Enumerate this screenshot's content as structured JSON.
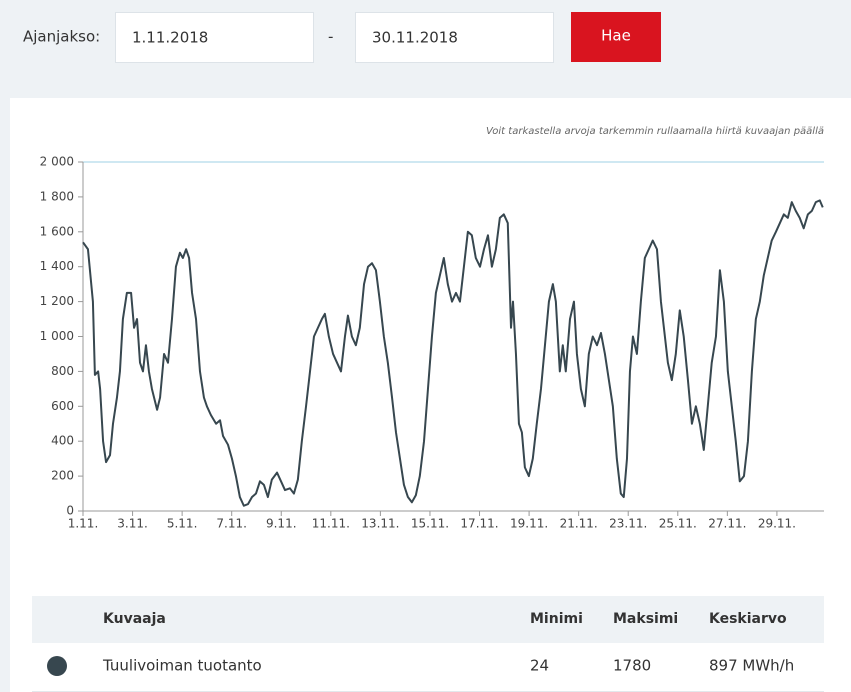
{
  "form": {
    "label": "Ajanjakso:",
    "start": "1.11.2018",
    "separator": "-",
    "end": "30.11.2018",
    "button": "Hae"
  },
  "hint": "Voit tarkastella arvoja tarkemmin rullaamalla hiirtä kuvaajan päällä",
  "chart_data": {
    "type": "line",
    "x": [
      1.0,
      1.2,
      1.4,
      1.48,
      1.61,
      1.69,
      1.81,
      1.93,
      2.09,
      2.21,
      2.37,
      2.49,
      2.61,
      2.77,
      2.94,
      3.06,
      3.18,
      3.3,
      3.42,
      3.54,
      3.66,
      3.78,
      3.99,
      4.11,
      4.27,
      4.43,
      4.59,
      4.75,
      4.91,
      5.03,
      5.16,
      5.28,
      5.4,
      5.56,
      5.72,
      5.88,
      6.0,
      6.16,
      6.37,
      6.53,
      6.65,
      6.85,
      7.01,
      7.17,
      7.33,
      7.49,
      7.66,
      7.82,
      7.98,
      8.14,
      8.3,
      8.46,
      8.62,
      8.83,
      8.99,
      9.15,
      9.35,
      9.51,
      9.67,
      9.83,
      10.0,
      10.16,
      10.32,
      10.48,
      10.64,
      10.76,
      10.92,
      11.09,
      11.25,
      11.41,
      11.57,
      11.69,
      11.85,
      12.01,
      12.17,
      12.34,
      12.5,
      12.66,
      12.82,
      12.98,
      13.14,
      13.3,
      13.47,
      13.63,
      13.79,
      13.95,
      14.11,
      14.27,
      14.43,
      14.59,
      14.76,
      14.92,
      15.08,
      15.24,
      15.4,
      15.56,
      15.72,
      15.89,
      16.05,
      16.21,
      16.37,
      16.53,
      16.69,
      16.85,
      17.02,
      17.18,
      17.34,
      17.5,
      17.66,
      17.82,
      17.98,
      18.14,
      18.27,
      18.35,
      18.47,
      18.59,
      18.71,
      18.83,
      18.99,
      19.15,
      19.31,
      19.48,
      19.64,
      19.8,
      19.96,
      20.08,
      20.24,
      20.36,
      20.48,
      20.65,
      20.81,
      20.93,
      21.09,
      21.25,
      21.41,
      21.57,
      21.74,
      21.9,
      22.06,
      22.22,
      22.38,
      22.54,
      22.7,
      22.82,
      22.95,
      23.07,
      23.19,
      23.35,
      23.51,
      23.67,
      23.83,
      23.99,
      24.16,
      24.32,
      24.44,
      24.6,
      24.76,
      24.92,
      25.08,
      25.24,
      25.41,
      25.57,
      25.73,
      25.89,
      26.05,
      26.21,
      26.37,
      26.54,
      26.7,
      26.86,
      27.02,
      27.18,
      27.34,
      27.5,
      27.67,
      27.83,
      27.99,
      28.15,
      28.31,
      28.47,
      28.63,
      28.79,
      28.96,
      29.12,
      29.28,
      29.44,
      29.6,
      29.76,
      29.92,
      30.08,
      30.25,
      30.41,
      30.57,
      30.73,
      30.85
    ],
    "series": [
      {
        "name": "Tuulivoiman tuotanto",
        "color": "#37474f",
        "values": [
          1540,
          1500,
          1200,
          780,
          800,
          700,
          400,
          280,
          320,
          500,
          650,
          800,
          1100,
          1250,
          1250,
          1050,
          1100,
          850,
          800,
          950,
          800,
          700,
          580,
          650,
          900,
          850,
          1100,
          1400,
          1480,
          1450,
          1500,
          1450,
          1250,
          1100,
          800,
          650,
          600,
          550,
          500,
          520,
          430,
          380,
          300,
          200,
          80,
          30,
          40,
          80,
          100,
          170,
          150,
          80,
          180,
          220,
          170,
          120,
          130,
          100,
          180,
          400,
          600,
          800,
          1000,
          1050,
          1100,
          1130,
          1000,
          900,
          850,
          800,
          1000,
          1120,
          1000,
          950,
          1050,
          1300,
          1400,
          1420,
          1380,
          1200,
          1000,
          850,
          650,
          450,
          300,
          150,
          80,
          50,
          90,
          200,
          400,
          700,
          1000,
          1250,
          1350,
          1450,
          1300,
          1200,
          1250,
          1200,
          1400,
          1600,
          1580,
          1450,
          1400,
          1500,
          1580,
          1400,
          1500,
          1680,
          1700,
          1650,
          1050,
          1200,
          900,
          500,
          450,
          250,
          200,
          300,
          500,
          700,
          950,
          1200,
          1300,
          1200,
          800,
          950,
          800,
          1100,
          1200,
          900,
          700,
          600,
          900,
          1000,
          950,
          1020,
          900,
          750,
          600,
          300,
          100,
          80,
          300,
          800,
          1000,
          900,
          1200,
          1450,
          1500,
          1550,
          1500,
          1200,
          1050,
          850,
          750,
          900,
          1150,
          1000,
          750,
          500,
          600,
          500,
          350,
          600,
          850,
          1000,
          1380,
          1200,
          800,
          600,
          400,
          170,
          200,
          400,
          800,
          1100,
          1200,
          1350,
          1450,
          1550,
          1600,
          1650,
          1700,
          1680,
          1770,
          1720,
          1680,
          1620,
          1700,
          1720,
          1770,
          1780,
          1740
        ]
      }
    ],
    "xlim": [
      1,
      30.9
    ],
    "xticks": [
      {
        "value": 1,
        "label": "1.11."
      },
      {
        "value": 3,
        "label": "3.11."
      },
      {
        "value": 5,
        "label": "5.11."
      },
      {
        "value": 7,
        "label": "7.11."
      },
      {
        "value": 9,
        "label": "9.11."
      },
      {
        "value": 11,
        "label": "11.11."
      },
      {
        "value": 13,
        "label": "13.11."
      },
      {
        "value": 15,
        "label": "15.11."
      },
      {
        "value": 17,
        "label": "17.11."
      },
      {
        "value": 19,
        "label": "19.11."
      },
      {
        "value": 21,
        "label": "21.11."
      },
      {
        "value": 23,
        "label": "23.11."
      },
      {
        "value": 25,
        "label": "25.11."
      },
      {
        "value": 27,
        "label": "27.11."
      },
      {
        "value": 29,
        "label": "29.11."
      }
    ],
    "ylim": [
      0,
      2000
    ],
    "yticks": [
      0,
      200,
      400,
      600,
      800,
      {
        "value": 1000,
        "label": "1 000"
      },
      {
        "value": 1200,
        "label": "1 200"
      },
      {
        "value": 1400,
        "label": "1 400"
      },
      {
        "value": 1600,
        "label": "1 600"
      },
      {
        "value": 1800,
        "label": "1 800"
      },
      {
        "value": 2000,
        "label": "2 000"
      }
    ],
    "grid": false
  },
  "table": {
    "header": [
      "Kuvaaja",
      "Minimi",
      "Maksimi",
      "Keskiarvo"
    ],
    "row": [
      "24",
      "1780",
      "897 MWh/h"
    ]
  }
}
